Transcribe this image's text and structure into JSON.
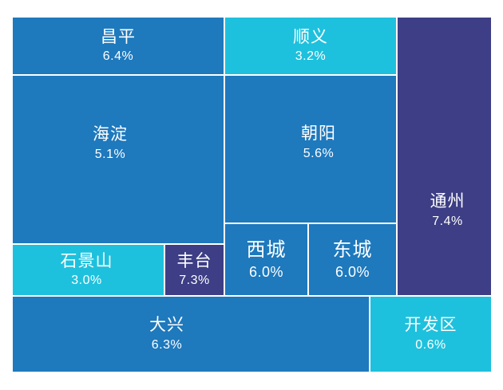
{
  "colors": {
    "blue": "#1e79bd",
    "cyan": "#1ec1dd",
    "purple": "#3d3e85"
  },
  "chart_data": {
    "type": "treemap",
    "title": "",
    "items": [
      {
        "key": "changping",
        "label": "昌平",
        "value": "6.4%",
        "color": "blue"
      },
      {
        "key": "shunyi",
        "label": "顺义",
        "value": "3.2%",
        "color": "cyan"
      },
      {
        "key": "tongzhou",
        "label": "通州",
        "value": "7.4%",
        "color": "purple"
      },
      {
        "key": "haidian",
        "label": "海淀",
        "value": "5.1%",
        "color": "blue"
      },
      {
        "key": "chaoyang",
        "label": "朝阳",
        "value": "5.6%",
        "color": "blue"
      },
      {
        "key": "shijingshan",
        "label": "石景山",
        "value": "3.0%",
        "color": "cyan"
      },
      {
        "key": "fengtai",
        "label": "丰台",
        "value": "7.3%",
        "color": "purple"
      },
      {
        "key": "xicheng",
        "label": "西城",
        "value": "6.0%",
        "color": "blue"
      },
      {
        "key": "dongcheng",
        "label": "东城",
        "value": "6.0%",
        "color": "blue"
      },
      {
        "key": "daxing",
        "label": "大兴",
        "value": "6.3%",
        "color": "blue"
      },
      {
        "key": "kaifaqu",
        "label": "开发区",
        "value": "0.6%",
        "color": "cyan"
      }
    ]
  }
}
